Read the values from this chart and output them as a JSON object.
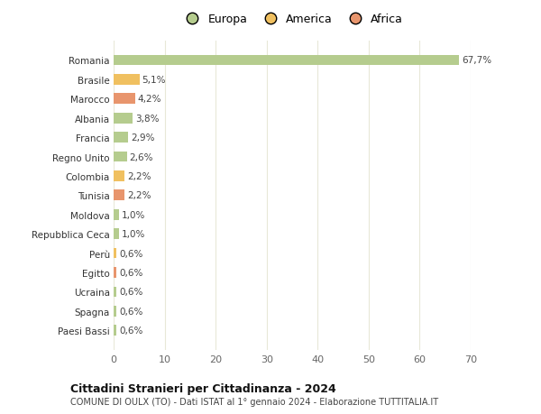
{
  "categories": [
    "Paesi Bassi",
    "Spagna",
    "Ucraina",
    "Egitto",
    "Perù",
    "Repubblica Ceca",
    "Moldova",
    "Tunisia",
    "Colombia",
    "Regno Unito",
    "Francia",
    "Albania",
    "Marocco",
    "Brasile",
    "Romania"
  ],
  "values": [
    0.6,
    0.6,
    0.6,
    0.6,
    0.6,
    1.0,
    1.0,
    2.2,
    2.2,
    2.6,
    2.9,
    3.8,
    4.2,
    5.1,
    67.7
  ],
  "labels": [
    "0,6%",
    "0,6%",
    "0,6%",
    "0,6%",
    "0,6%",
    "1,0%",
    "1,0%",
    "2,2%",
    "2,2%",
    "2,6%",
    "2,9%",
    "3,8%",
    "4,2%",
    "5,1%",
    "67,7%"
  ],
  "continents": [
    "Europa",
    "Europa",
    "Europa",
    "Africa",
    "America",
    "Europa",
    "Europa",
    "Africa",
    "America",
    "Europa",
    "Europa",
    "Europa",
    "Africa",
    "America",
    "Europa"
  ],
  "colors": {
    "Europa": "#b5cc8e",
    "America": "#f0c060",
    "Africa": "#e8956d"
  },
  "title_bold": "Cittadini Stranieri per Cittadinanza - 2024",
  "subtitle": "COMUNE DI OULX (TO) - Dati ISTAT al 1° gennaio 2024 - Elaborazione TUTTITALIA.IT",
  "xlim": [
    0,
    70
  ],
  "xticks": [
    0,
    10,
    20,
    30,
    40,
    50,
    60,
    70
  ],
  "background_color": "#ffffff",
  "grid_color": "#e8e8d8"
}
